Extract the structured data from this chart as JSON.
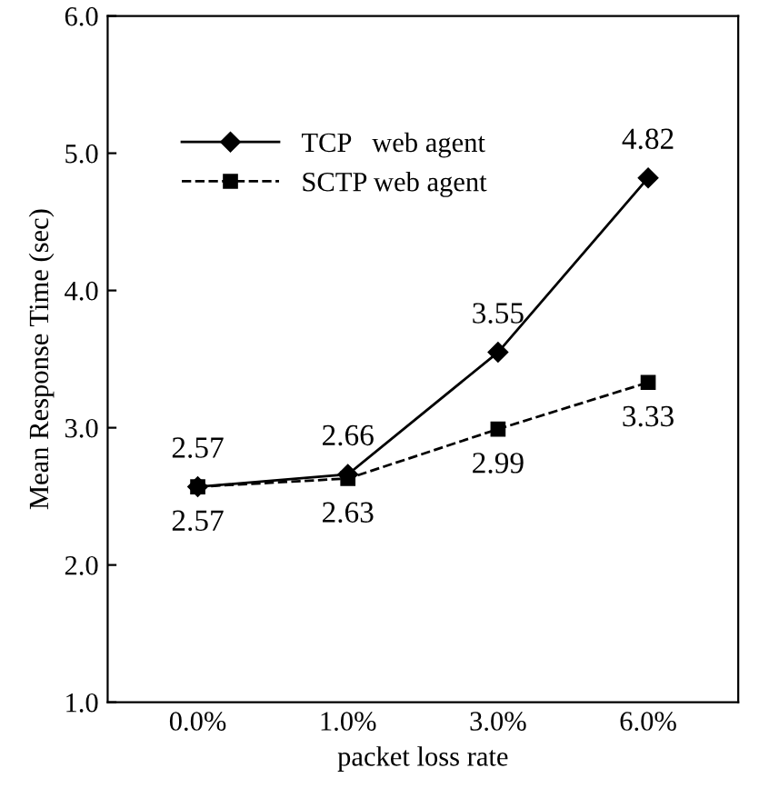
{
  "chart_data": {
    "type": "line",
    "xlabel": "packet loss rate",
    "ylabel": "Mean Response Time (sec)",
    "categories": [
      "0.0%",
      "1.0%",
      "3.0%",
      "6.0%"
    ],
    "series": [
      {
        "name": "TCP   web agent",
        "color": "#000000",
        "values": [
          2.57,
          2.66,
          3.55,
          4.82
        ],
        "marker": "diamond",
        "line_style": "solid"
      },
      {
        "name": "SCTP web agent",
        "color": "#000000",
        "values": [
          2.57,
          2.63,
          2.99,
          3.33
        ],
        "marker": "square",
        "line_style": "dashed"
      }
    ],
    "ylim": [
      1.0,
      6.0
    ],
    "yticks": [
      {
        "value": 1.0,
        "label": "1.0"
      },
      {
        "value": 2.0,
        "label": "2.0"
      },
      {
        "value": 3.0,
        "label": "3.0"
      },
      {
        "value": 4.0,
        "label": "4.0"
      },
      {
        "value": 5.0,
        "label": "5.0"
      },
      {
        "value": 6.0,
        "label": "6.0"
      }
    ],
    "data_labels": true,
    "legend": "top left",
    "grid": false
  }
}
